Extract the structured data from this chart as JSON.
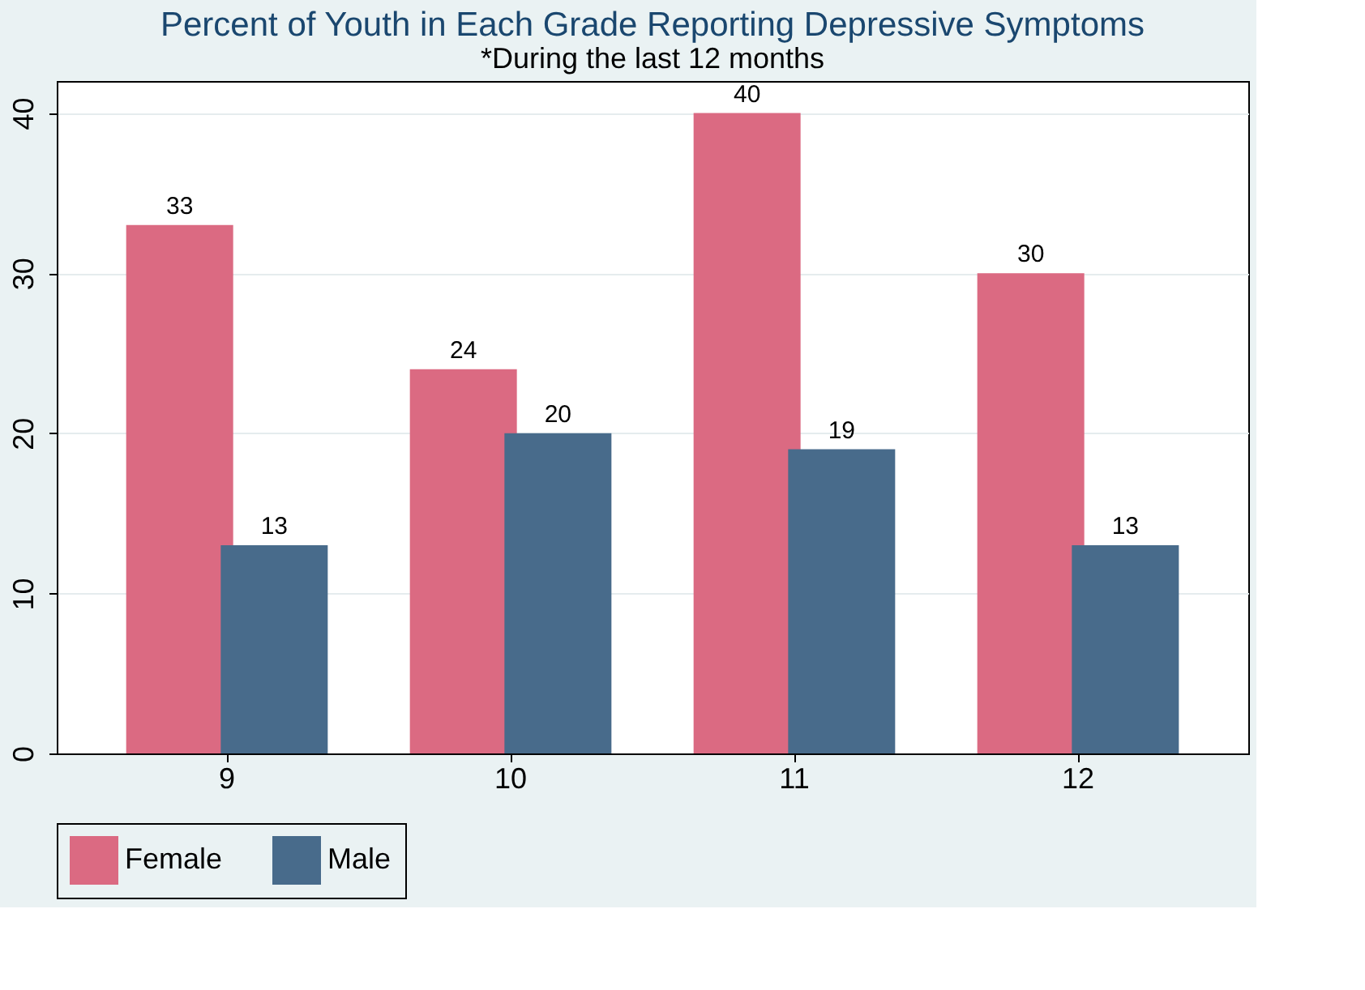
{
  "chart_data": {
    "type": "bar",
    "title": "Percent of Youth in Each Grade Reporting Depressive Symptoms",
    "subtitle": "*During the last 12 months",
    "categories": [
      "9",
      "10",
      "11",
      "12"
    ],
    "series": [
      {
        "name": "Female",
        "color": "#db6a82",
        "values": [
          33,
          24,
          40,
          30
        ]
      },
      {
        "name": "Male",
        "color": "#486b8b",
        "values": [
          13,
          20,
          19,
          13
        ]
      }
    ],
    "ylim": [
      0,
      42
    ],
    "yticks": [
      0,
      10,
      20,
      30,
      40
    ],
    "grid": "y",
    "legend": "bottom",
    "data_labels": true
  }
}
